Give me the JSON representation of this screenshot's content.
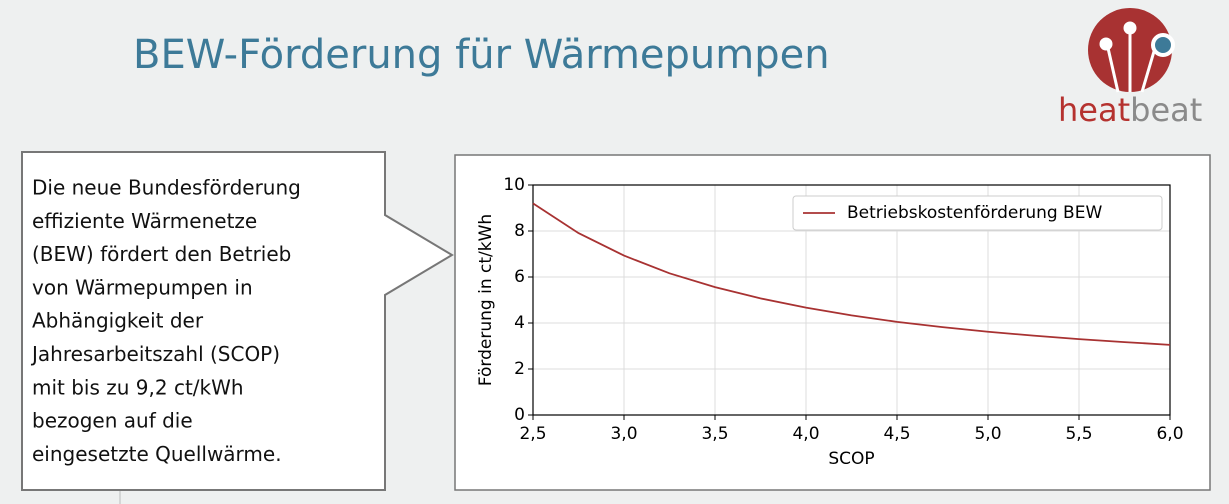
{
  "header": {
    "title": "BEW-Förderung für Wärmepumpen"
  },
  "logo": {
    "heat": "heat",
    "beat": "beat"
  },
  "callout": {
    "lines": [
      "Die neue Bundesförderung",
      "effiziente Wärmenetze",
      "(BEW) fördert den Betrieb",
      "von Wärmepumpen in",
      "Abhängigkeit der",
      "Jahresarbeitszahl (SCOP)",
      "mit bis zu 9,2 ct/kWh",
      "bezogen auf die",
      "eingesetzte Quellwärme."
    ]
  },
  "chart_data": {
    "type": "line",
    "x": [
      2.5,
      2.75,
      3.0,
      3.25,
      3.5,
      3.75,
      4.0,
      4.25,
      4.5,
      4.75,
      5.0,
      5.25,
      5.5,
      5.75,
      6.0
    ],
    "series": [
      {
        "name": "Betriebskostenförderung BEW",
        "color": "#a83232",
        "values": [
          9.2,
          7.91,
          6.93,
          6.16,
          5.56,
          5.07,
          4.67,
          4.33,
          4.05,
          3.82,
          3.62,
          3.45,
          3.3,
          3.17,
          3.05
        ]
      }
    ],
    "xlabel": "SCOP",
    "ylabel": "Förderung in ct/kWh",
    "xlim": [
      2.5,
      6.0
    ],
    "ylim": [
      0,
      10
    ],
    "xticks": [
      {
        "value": 2.5,
        "label": "2,5"
      },
      {
        "value": 3.0,
        "label": "3,0"
      },
      {
        "value": 3.5,
        "label": "3,5"
      },
      {
        "value": 4.0,
        "label": "4,0"
      },
      {
        "value": 4.5,
        "label": "4,5"
      },
      {
        "value": 5.0,
        "label": "5,0"
      },
      {
        "value": 5.5,
        "label": "5,5"
      },
      {
        "value": 6.0,
        "label": "6,0"
      }
    ],
    "yticks": [
      0,
      2,
      4,
      6,
      8,
      10
    ],
    "grid": true,
    "legend": "upper right"
  }
}
